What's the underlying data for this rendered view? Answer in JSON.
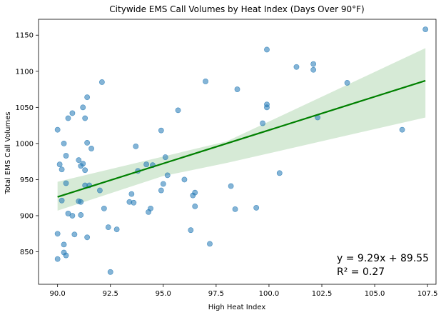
{
  "chart_data": {
    "type": "scatter",
    "title": "Citywide EMS Call Volumes by Heat Index (Days Over 90°F)",
    "xlabel": "High Heat Index",
    "ylabel": "Total EMS Call Volumes",
    "xlim": [
      89.1,
      107.9
    ],
    "ylim": [
      805,
      1172
    ],
    "xticks": [
      90.0,
      92.5,
      95.0,
      97.5,
      100.0,
      102.5,
      105.0,
      107.5
    ],
    "xtick_labels": [
      "90.0",
      "92.5",
      "95.0",
      "97.5",
      "100.0",
      "102.5",
      "105.0",
      "107.5"
    ],
    "yticks": [
      850,
      900,
      950,
      1000,
      1050,
      1100,
      1150
    ],
    "ytick_labels": [
      "850",
      "900",
      "950",
      "1000",
      "1050",
      "1100",
      "1150"
    ],
    "grid": false,
    "colors": {
      "points": "#1f77b4",
      "regression_line": "#008000",
      "confidence_band": "#d6ead6"
    },
    "points": [
      [
        90.0,
        1019
      ],
      [
        90.1,
        971
      ],
      [
        90.2,
        921
      ],
      [
        90.2,
        964
      ],
      [
        90.3,
        1000
      ],
      [
        90.4,
        983
      ],
      [
        90.4,
        945
      ],
      [
        90.5,
        1035
      ],
      [
        90.7,
        1042
      ],
      [
        91.0,
        977
      ],
      [
        91.2,
        1050
      ],
      [
        91.3,
        1035
      ],
      [
        91.4,
        1064
      ],
      [
        91.1,
        969
      ],
      [
        91.2,
        972
      ],
      [
        91.3,
        963
      ],
      [
        91.4,
        1001
      ],
      [
        91.6,
        993
      ],
      [
        91.3,
        942
      ],
      [
        91.5,
        942
      ],
      [
        92.0,
        935
      ],
      [
        92.1,
        1085
      ],
      [
        90.0,
        840
      ],
      [
        90.0,
        875
      ],
      [
        90.3,
        860
      ],
      [
        90.3,
        849
      ],
      [
        90.4,
        845
      ],
      [
        90.5,
        903
      ],
      [
        90.7,
        900
      ],
      [
        90.8,
        874
      ],
      [
        91.0,
        920
      ],
      [
        91.1,
        901
      ],
      [
        91.1,
        919
      ],
      [
        91.4,
        870
      ],
      [
        92.2,
        910
      ],
      [
        92.4,
        884
      ],
      [
        92.5,
        822
      ],
      [
        92.8,
        881
      ],
      [
        93.4,
        919
      ],
      [
        93.5,
        930
      ],
      [
        93.6,
        918
      ],
      [
        93.7,
        996
      ],
      [
        93.8,
        962
      ],
      [
        94.2,
        971
      ],
      [
        94.3,
        905
      ],
      [
        94.4,
        910
      ],
      [
        94.5,
        970
      ],
      [
        94.9,
        1018
      ],
      [
        94.9,
        935
      ],
      [
        95.0,
        944
      ],
      [
        95.1,
        981
      ],
      [
        95.2,
        956
      ],
      [
        95.7,
        1046
      ],
      [
        96.0,
        950
      ],
      [
        96.3,
        880
      ],
      [
        96.4,
        928
      ],
      [
        96.5,
        913
      ],
      [
        96.5,
        932
      ],
      [
        97.0,
        1086
      ],
      [
        97.2,
        861
      ],
      [
        98.2,
        941
      ],
      [
        98.4,
        909
      ],
      [
        98.5,
        1075
      ],
      [
        99.4,
        911
      ],
      [
        99.7,
        1028
      ],
      [
        99.9,
        1054
      ],
      [
        99.9,
        1050
      ],
      [
        99.9,
        1130
      ],
      [
        100.5,
        959
      ],
      [
        101.3,
        1106
      ],
      [
        102.1,
        1102
      ],
      [
        102.1,
        1110
      ],
      [
        102.3,
        1036
      ],
      [
        103.7,
        1084
      ],
      [
        106.3,
        1019
      ],
      [
        107.4,
        1158
      ]
    ],
    "regression": {
      "slope": 9.29,
      "intercept": 89.55,
      "x_range": [
        90.0,
        107.4
      ],
      "line_endpoints": [
        [
          90.0,
          926
        ],
        [
          107.4,
          1087
        ]
      ],
      "ci_lower": [
        [
          90.0,
          907
        ],
        [
          95.0,
          955
        ],
        [
          98.0,
          973
        ],
        [
          107.4,
          1036
        ]
      ],
      "ci_upper": [
        [
          90.0,
          947
        ],
        [
          95.0,
          982
        ],
        [
          98.0,
          1003
        ],
        [
          107.4,
          1132
        ]
      ]
    },
    "annotations": {
      "equation": "y = 9.29x + 89.55",
      "r_squared": "R² = 0.27"
    }
  }
}
